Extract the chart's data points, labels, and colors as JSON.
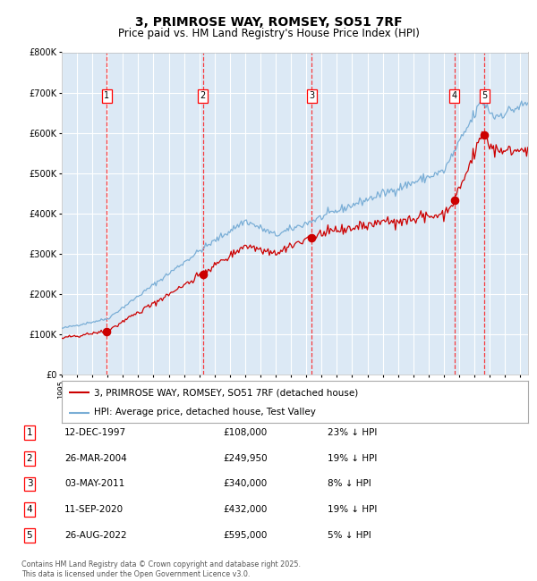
{
  "title": "3, PRIMROSE WAY, ROMSEY, SO51 7RF",
  "subtitle": "Price paid vs. HM Land Registry's House Price Index (HPI)",
  "bg_color": "#dce9f5",
  "fig_bg_color": "#ffffff",
  "red_color": "#cc0000",
  "blue_color": "#7aaed6",
  "grid_color": "#ffffff",
  "sale_dates": [
    1997.95,
    2004.23,
    2011.34,
    2020.69,
    2022.65
  ],
  "sale_prices": [
    108000,
    249950,
    340000,
    432000,
    595000
  ],
  "sale_labels": [
    "1",
    "2",
    "3",
    "4",
    "5"
  ],
  "sale_info": [
    [
      "1",
      "12-DEC-1997",
      "£108,000",
      "23% ↓ HPI"
    ],
    [
      "2",
      "26-MAR-2004",
      "£249,950",
      "19% ↓ HPI"
    ],
    [
      "3",
      "03-MAY-2011",
      "£340,000",
      "8% ↓ HPI"
    ],
    [
      "4",
      "11-SEP-2020",
      "£432,000",
      "19% ↓ HPI"
    ],
    [
      "5",
      "26-AUG-2022",
      "£595,000",
      "5% ↓ HPI"
    ]
  ],
  "legend_line1": "3, PRIMROSE WAY, ROMSEY, SO51 7RF (detached house)",
  "legend_line2": "HPI: Average price, detached house, Test Valley",
  "footnote": "Contains HM Land Registry data © Crown copyright and database right 2025.\nThis data is licensed under the Open Government Licence v3.0.",
  "ylim": [
    0,
    800000
  ],
  "yticks": [
    0,
    100000,
    200000,
    300000,
    400000,
    500000,
    600000,
    700000,
    800000
  ],
  "xmin": 1995,
  "xmax": 2025.5
}
